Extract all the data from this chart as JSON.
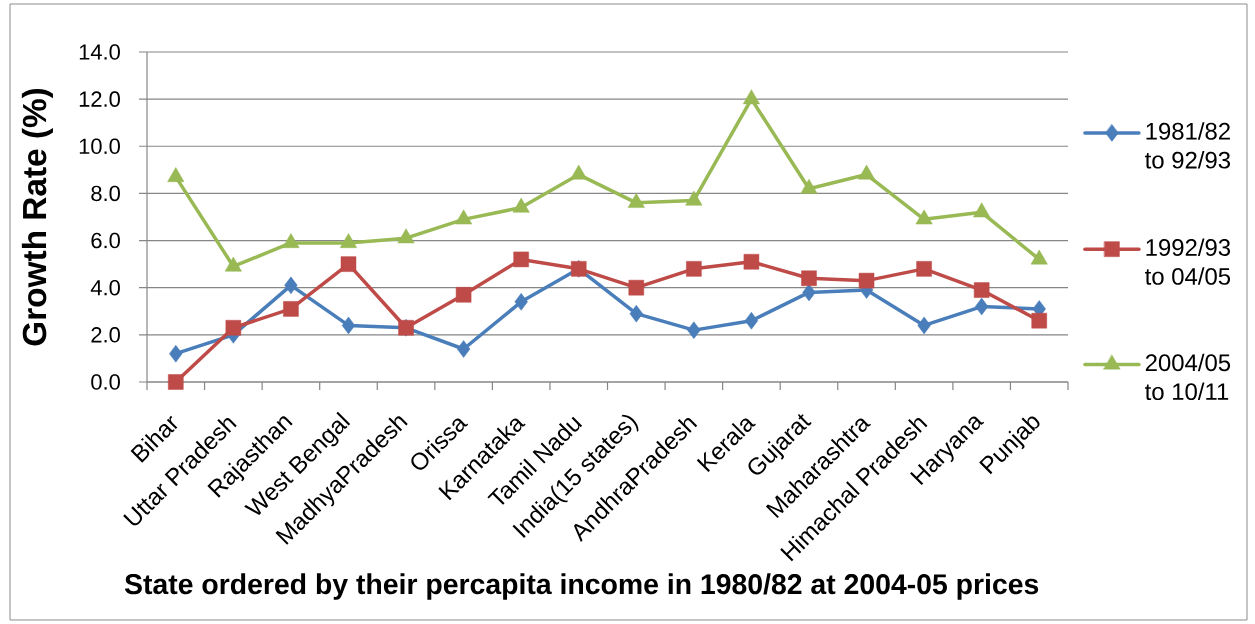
{
  "chart_data": {
    "type": "line",
    "xlabel": "State ordered by their percapita income in 1980/82  at 2004-05 prices",
    "ylabel": "Growth Rate (%)",
    "categories": [
      "Bihar",
      "Uttar Pradesh",
      "Rajasthan",
      "West Bengal",
      "MadhyaPradesh",
      "Orissa",
      "Karnataka",
      "Tamil Nadu",
      "India(15 states)",
      "AndhraPradesh",
      "Kerala",
      "Gujarat",
      "Maharashtra",
      "Himachal Pradesh",
      "Haryana",
      "Punjab"
    ],
    "series": [
      {
        "name": "1981/82 to 92/93",
        "color": "#4a7ebb",
        "marker": "diamond",
        "values": [
          1.2,
          2.0,
          4.1,
          2.4,
          2.3,
          1.4,
          3.4,
          4.8,
          2.9,
          2.2,
          2.6,
          3.8,
          3.9,
          2.4,
          3.2,
          3.1
        ]
      },
      {
        "name": "1992/93 to 04/05",
        "color": "#be4b48",
        "marker": "square",
        "values": [
          0.0,
          2.3,
          3.1,
          5.0,
          2.3,
          3.7,
          5.2,
          4.8,
          4.0,
          4.8,
          5.1,
          4.4,
          4.3,
          4.8,
          3.9,
          2.6
        ]
      },
      {
        "name": "2004/05 to 10/11",
        "color": "#98b954",
        "marker": "triangle",
        "values": [
          8.7,
          4.9,
          5.9,
          5.9,
          6.1,
          6.9,
          7.4,
          8.8,
          7.6,
          7.7,
          12.0,
          8.2,
          8.8,
          6.9,
          7.2,
          5.2
        ]
      }
    ],
    "ylim": [
      0,
      14
    ],
    "yticks": [
      {
        "value": 0,
        "label": "0.0"
      },
      {
        "value": 2,
        "label": "2.0"
      },
      {
        "value": 4,
        "label": "4.0"
      },
      {
        "value": 6,
        "label": "6.0"
      },
      {
        "value": 8,
        "label": "8.0"
      },
      {
        "value": 10,
        "label": "10.0"
      },
      {
        "value": 12,
        "label": "12.0"
      },
      {
        "value": 14,
        "label": "14.0"
      }
    ],
    "grid": "y",
    "legend": "right",
    "line_style": "solid"
  }
}
